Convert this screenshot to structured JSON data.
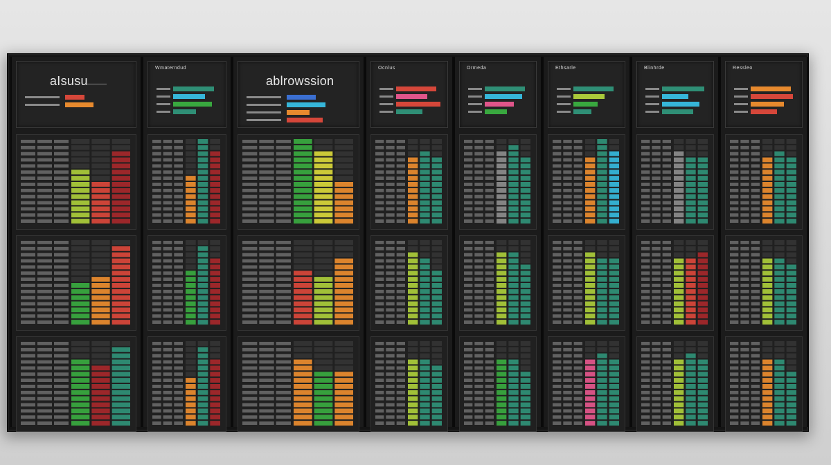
{
  "titles": {
    "col1_big": "aIsusu",
    "col2_small": "Wmaterndud",
    "col3_big": "ablrowssion",
    "col4_small": "Ocnlus",
    "col5_small": "Ormeda",
    "col6_small": "Ethsarle",
    "col7_small": "Blinhrde",
    "col8_small": "Ressleo"
  },
  "palette": {
    "green": "#39a83f",
    "lime": "#a9c93a",
    "yellow": "#d5d33a",
    "orange": "#e78a2e",
    "red": "#d6473a",
    "darkred": "#a3282b",
    "teal": "#2f8f76",
    "cyan": "#36b6d9",
    "blue": "#3b6fd1",
    "pink": "#e0558a",
    "grid": "#6d6d6d"
  },
  "columns": [
    {
      "header_bars": [
        {
          "color": "#d6473a",
          "fill": 0.3
        },
        {
          "color": "#e78a2e",
          "fill": 0.45
        }
      ],
      "panels": [
        {
          "accents": [
            "#a9c93a",
            "#d6473a",
            "#a3282b"
          ],
          "heights": [
            0.7,
            0.55,
            0.9
          ]
        },
        {
          "accents": [
            "#39a83f",
            "#e78a2e",
            "#d6473a"
          ],
          "heights": [
            0.5,
            0.6,
            0.95
          ]
        },
        {
          "accents": [
            "#39a83f",
            "#a3282b",
            "#2f8f76"
          ],
          "heights": [
            0.85,
            0.75,
            0.95
          ]
        }
      ]
    },
    {
      "header_bars": [
        {
          "color": "#2f8f76",
          "fill": 0.9
        },
        {
          "color": "#36b6d9",
          "fill": 0.7
        },
        {
          "color": "#39a83f",
          "fill": 0.85
        },
        {
          "color": "#2f8f76",
          "fill": 0.5
        }
      ],
      "panels": [
        {
          "accents": [
            "#e78a2e",
            "#2f8f76",
            "#a3282b"
          ],
          "heights": [
            0.6,
            1.0,
            0.9
          ]
        },
        {
          "accents": [
            "#39a83f",
            "#2f8f76",
            "#a3282b"
          ],
          "heights": [
            0.7,
            0.95,
            0.8
          ]
        },
        {
          "accents": [
            "#e78a2e",
            "#2f8f76",
            "#a3282b"
          ],
          "heights": [
            0.6,
            0.95,
            0.85
          ]
        }
      ]
    },
    {
      "header_bars": [
        {
          "color": "#3b6fd1",
          "fill": 0.45
        },
        {
          "color": "#36b6d9",
          "fill": 0.6
        },
        {
          "color": "#e78a2e",
          "fill": 0.35
        },
        {
          "color": "#d6473a",
          "fill": 0.55
        }
      ],
      "panels": [
        {
          "accents": [
            "#39a83f",
            "#d5d33a",
            "#e78a2e"
          ],
          "heights": [
            1.0,
            0.9,
            0.55
          ]
        },
        {
          "accents": [
            "#d6473a",
            "#a9c93a",
            "#e78a2e"
          ],
          "heights": [
            0.7,
            0.6,
            0.8
          ]
        },
        {
          "accents": [
            "#e78a2e",
            "#39a83f",
            "#e78a2e"
          ],
          "heights": [
            0.8,
            0.7,
            0.7
          ]
        }
      ]
    },
    {
      "header_bars": [
        {
          "color": "#d6473a",
          "fill": 0.9
        },
        {
          "color": "#e0558a",
          "fill": 0.7
        },
        {
          "color": "#d6473a",
          "fill": 1.0
        },
        {
          "color": "#2f8f76",
          "fill": 0.6
        }
      ],
      "panels": [
        {
          "accents": [
            "#e78a2e",
            "#2f8f76",
            "#2f8f76"
          ],
          "heights": [
            0.8,
            0.9,
            0.8
          ]
        },
        {
          "accents": [
            "#a9c93a",
            "#2f8f76",
            "#2f8f76"
          ],
          "heights": [
            0.9,
            0.8,
            0.7
          ]
        },
        {
          "accents": [
            "#a9c93a",
            "#2f8f76",
            "#2f8f76"
          ],
          "heights": [
            0.8,
            0.85,
            0.75
          ]
        }
      ]
    },
    {
      "header_bars": [
        {
          "color": "#2f8f76",
          "fill": 0.9
        },
        {
          "color": "#36b6d9",
          "fill": 0.85
        },
        {
          "color": "#e0558a",
          "fill": 0.65
        },
        {
          "color": "#39a83f",
          "fill": 0.5
        }
      ],
      "panels": [
        {
          "accents": [
            "#8a8a8a",
            "#2f8f76",
            "#2f8f76"
          ],
          "heights": [
            0.9,
            0.95,
            0.85
          ]
        },
        {
          "accents": [
            "#a9c93a",
            "#2f8f76",
            "#2f8f76"
          ],
          "heights": [
            0.9,
            0.9,
            0.75
          ]
        },
        {
          "accents": [
            "#39a83f",
            "#2f8f76",
            "#2f8f76"
          ],
          "heights": [
            0.85,
            0.8,
            0.7
          ]
        }
      ]
    },
    {
      "header_bars": [
        {
          "color": "#2f8f76",
          "fill": 0.9
        },
        {
          "color": "#a9c93a",
          "fill": 0.7
        },
        {
          "color": "#39a83f",
          "fill": 0.55
        },
        {
          "color": "#2f8f76",
          "fill": 0.4
        }
      ],
      "panels": [
        {
          "accents": [
            "#e78a2e",
            "#2f8f76",
            "#36b6d9"
          ],
          "heights": [
            0.85,
            1.0,
            0.9
          ]
        },
        {
          "accents": [
            "#a9c93a",
            "#2f8f76",
            "#2f8f76"
          ],
          "heights": [
            0.9,
            0.85,
            0.8
          ]
        },
        {
          "accents": [
            "#e0558a",
            "#2f8f76",
            "#2f8f76"
          ],
          "heights": [
            0.85,
            0.9,
            0.8
          ]
        }
      ]
    },
    {
      "header_bars": [
        {
          "color": "#2f8f76",
          "fill": 0.95
        },
        {
          "color": "#36b6d9",
          "fill": 0.6
        },
        {
          "color": "#36b6d9",
          "fill": 0.85
        },
        {
          "color": "#2f8f76",
          "fill": 0.7
        }
      ],
      "panels": [
        {
          "accents": [
            "#8a8a8a",
            "#2f8f76",
            "#2f8f76"
          ],
          "heights": [
            0.9,
            0.85,
            0.85
          ]
        },
        {
          "accents": [
            "#a9c93a",
            "#d6473a",
            "#a3282b"
          ],
          "heights": [
            0.85,
            0.8,
            0.9
          ]
        },
        {
          "accents": [
            "#a9c93a",
            "#2f8f76",
            "#2f8f76"
          ],
          "heights": [
            0.85,
            0.9,
            0.8
          ]
        }
      ]
    },
    {
      "header_bars": [
        {
          "color": "#e78a2e",
          "fill": 0.9
        },
        {
          "color": "#d6473a",
          "fill": 0.95
        },
        {
          "color": "#e78a2e",
          "fill": 0.75
        },
        {
          "color": "#d6473a",
          "fill": 0.6
        }
      ],
      "panels": [
        {
          "accents": [
            "#e78a2e",
            "#2f8f76",
            "#2f8f76"
          ],
          "heights": [
            0.85,
            0.9,
            0.8
          ]
        },
        {
          "accents": [
            "#a9c93a",
            "#2f8f76",
            "#2f8f76"
          ],
          "heights": [
            0.85,
            0.85,
            0.75
          ]
        },
        {
          "accents": [
            "#e78a2e",
            "#2f8f76",
            "#2f8f76"
          ],
          "heights": [
            0.8,
            0.8,
            0.7
          ]
        }
      ]
    }
  ]
}
